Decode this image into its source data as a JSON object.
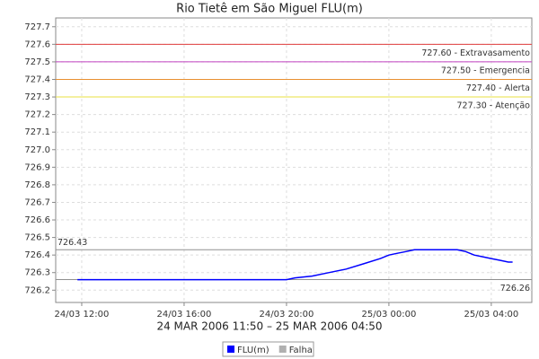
{
  "chart_data": {
    "type": "line",
    "title": "Rio Tietê em São Miguel FLU(m)",
    "subtitle": "24 MAR 2006 11:50 – 25 MAR 2006 04:50",
    "x": [
      "24/03 11:50",
      "24/03 14:00",
      "24/03 16:00",
      "24/03 18:00",
      "24/03 20:00",
      "24/03 20:20",
      "24/03 21:00",
      "24/03 21:40",
      "24/03 22:20",
      "24/03 23:00",
      "24/03 23:40",
      "25/03 00:00",
      "25/03 00:20",
      "25/03 00:40",
      "25/03 01:00",
      "25/03 02:00",
      "25/03 02:40",
      "25/03 03:00",
      "25/03 03:20",
      "25/03 03:40",
      "25/03 04:00",
      "25/03 04:20",
      "25/03 04:40",
      "25/03 04:50"
    ],
    "series": [
      {
        "name": "FLU(m)",
        "color": "#0000ff",
        "values": [
          726.26,
          726.26,
          726.26,
          726.26,
          726.26,
          726.27,
          726.28,
          726.3,
          726.32,
          726.35,
          726.38,
          726.4,
          726.41,
          726.42,
          726.43,
          726.43,
          726.43,
          726.42,
          726.4,
          726.39,
          726.38,
          726.37,
          726.36,
          726.36
        ]
      },
      {
        "name": "Falha",
        "color": "#b0b0b0",
        "values": [
          null,
          null,
          null,
          null,
          null,
          null,
          null,
          null,
          null,
          null,
          null,
          null,
          null,
          null,
          null,
          null,
          null,
          null,
          null,
          null,
          null,
          null,
          null,
          null
        ]
      }
    ],
    "xlim": [
      "24/03 10:59",
      "25/03 05:35"
    ],
    "xticks": [
      "24/03 12:00",
      "24/03 16:00",
      "24/03 20:00",
      "25/03 00:00",
      "25/03 04:00"
    ],
    "ylim": [
      726.13,
      727.75
    ],
    "yticks": [
      726.2,
      726.3,
      726.4,
      726.5,
      726.6,
      726.7,
      726.8,
      726.9,
      {
        "value": 727,
        "label": "727.0"
      },
      727.1,
      727.2,
      727.3,
      727.4,
      727.5,
      727.6,
      727.7
    ],
    "grid": true,
    "thresholds": [
      {
        "value": 727.6,
        "label": "727.60 - Extravasamento",
        "color": "#e03c3c",
        "side": "right"
      },
      {
        "value": 727.5,
        "label": "727.50 - Emergencia",
        "color": "#c040c0",
        "side": "right"
      },
      {
        "value": 727.4,
        "label": "727.40 - Alerta",
        "color": "#e89030",
        "side": "right"
      },
      {
        "value": 727.3,
        "label": "727.30 - Atenção",
        "color": "#e8e040",
        "side": "right"
      },
      {
        "value": 726.43,
        "label": "726.43",
        "color": "#909090",
        "side": "left"
      },
      {
        "value": 726.26,
        "label": "726.26",
        "color": "#909090",
        "side": "right"
      }
    ]
  }
}
